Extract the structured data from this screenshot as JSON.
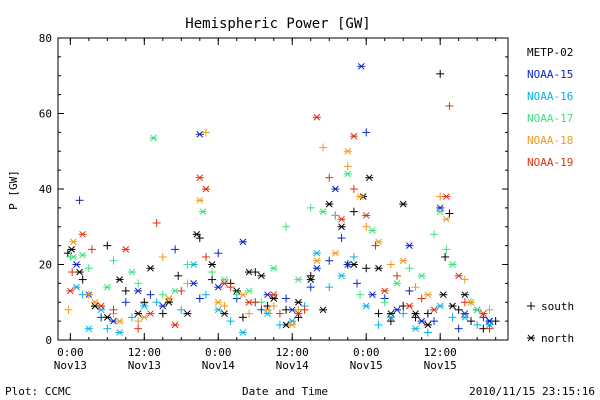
{
  "chart_data": {
    "type": "scatter",
    "title": "Hemispheric Power [GW]",
    "xlabel": "Date and Time",
    "ylabel": "P [GW]",
    "ylim": [
      0,
      80
    ],
    "xlim_hours": [
      -2,
      71
    ],
    "x_ticks": [
      {
        "hour": 0,
        "time": "0:00",
        "date": "Nov13"
      },
      {
        "hour": 12,
        "time": "12:00",
        "date": "Nov13"
      },
      {
        "hour": 24,
        "time": "0:00",
        "date": "Nov14"
      },
      {
        "hour": 36,
        "time": "12:00",
        "date": "Nov14"
      },
      {
        "hour": 48,
        "time": "0:00",
        "date": "Nov15"
      },
      {
        "hour": 60,
        "time": "12:00",
        "date": "Nov15"
      }
    ],
    "y_ticks": [
      0,
      20,
      40,
      60,
      80
    ],
    "footer_left": "Plot: CCMC",
    "footer_right": "2010/11/15 23:15:16",
    "marker_legend": [
      {
        "glyph": "+",
        "label": "south"
      },
      {
        "glyph": "*",
        "label": "north"
      }
    ],
    "series": [
      {
        "name": "METP-02",
        "color": "#000000",
        "south": [
          [
            -0.4,
            23
          ],
          [
            2,
            16
          ],
          [
            6,
            25
          ],
          [
            9,
            13
          ],
          [
            12,
            10
          ],
          [
            15,
            7
          ],
          [
            17.5,
            17
          ],
          [
            21,
            27
          ],
          [
            23,
            16
          ],
          [
            26,
            15
          ],
          [
            28,
            6
          ],
          [
            30,
            18
          ],
          [
            32,
            9
          ],
          [
            35,
            8
          ],
          [
            37,
            6
          ],
          [
            39,
            17
          ],
          [
            43,
            33
          ],
          [
            45,
            20
          ],
          [
            46,
            34
          ],
          [
            48,
            19
          ],
          [
            50,
            7
          ],
          [
            52,
            5
          ],
          [
            54,
            9
          ],
          [
            56,
            6
          ],
          [
            58,
            7
          ],
          [
            60,
            70.5
          ],
          [
            60.8,
            22
          ],
          [
            61.5,
            33.5
          ],
          [
            63,
            8
          ],
          [
            65,
            5
          ],
          [
            67,
            3
          ],
          [
            69,
            5
          ]
        ],
        "north": [
          [
            0.2,
            24
          ],
          [
            1.5,
            18
          ],
          [
            4,
            9
          ],
          [
            6,
            6
          ],
          [
            8,
            16
          ],
          [
            11,
            7
          ],
          [
            13,
            19
          ],
          [
            16,
            10
          ],
          [
            19,
            7
          ],
          [
            20.5,
            28
          ],
          [
            23,
            20
          ],
          [
            25,
            7
          ],
          [
            27,
            13
          ],
          [
            29,
            18
          ],
          [
            31,
            17
          ],
          [
            33,
            11
          ],
          [
            35,
            4
          ],
          [
            37,
            10
          ],
          [
            39,
            16
          ],
          [
            41,
            8
          ],
          [
            42,
            36
          ],
          [
            44,
            30
          ],
          [
            46,
            20
          ],
          [
            47.5,
            38
          ],
          [
            48.5,
            43
          ],
          [
            50,
            19
          ],
          [
            52,
            7
          ],
          [
            54,
            36
          ],
          [
            56,
            7
          ],
          [
            58,
            4
          ],
          [
            60.5,
            12
          ],
          [
            62,
            9
          ],
          [
            64,
            12
          ],
          [
            66,
            8
          ],
          [
            68,
            5
          ]
        ]
      },
      {
        "name": "NOAA-15",
        "color": "#0a26c8",
        "south": [
          [
            1.5,
            37
          ],
          [
            5,
            6
          ],
          [
            9,
            10
          ],
          [
            13,
            12
          ],
          [
            17,
            24
          ],
          [
            21,
            11
          ],
          [
            24,
            23
          ],
          [
            27,
            11
          ],
          [
            31,
            8
          ],
          [
            35,
            11
          ],
          [
            39,
            14
          ],
          [
            42,
            21
          ],
          [
            44,
            27
          ],
          [
            46.5,
            15
          ],
          [
            48,
            55
          ],
          [
            51,
            11
          ],
          [
            55,
            13
          ],
          [
            59,
            5
          ],
          [
            63,
            3
          ],
          [
            67,
            6
          ]
        ],
        "north": [
          [
            1,
            20
          ],
          [
            3,
            12
          ],
          [
            7,
            5
          ],
          [
            11,
            13
          ],
          [
            15,
            9
          ],
          [
            20,
            15
          ],
          [
            21,
            54.5
          ],
          [
            24,
            14
          ],
          [
            28,
            26
          ],
          [
            32,
            12
          ],
          [
            36,
            8
          ],
          [
            40,
            19
          ],
          [
            43,
            40
          ],
          [
            45,
            20
          ],
          [
            47.2,
            72.5
          ],
          [
            49,
            12
          ],
          [
            53,
            8
          ],
          [
            55,
            25
          ],
          [
            57,
            5
          ],
          [
            60,
            35
          ],
          [
            64,
            7
          ],
          [
            68,
            5
          ]
        ]
      },
      {
        "name": "NOAA-16",
        "color": "#00b4e6",
        "south": [
          [
            2,
            12
          ],
          [
            6,
            3
          ],
          [
            10,
            6
          ],
          [
            14,
            10
          ],
          [
            18,
            8
          ],
          [
            22,
            12
          ],
          [
            26,
            5
          ],
          [
            30,
            10
          ],
          [
            34,
            4
          ],
          [
            38,
            9
          ],
          [
            42,
            14
          ],
          [
            46,
            22
          ],
          [
            50,
            4
          ],
          [
            54,
            7
          ],
          [
            58,
            2
          ],
          [
            62,
            6
          ],
          [
            66,
            4
          ]
        ],
        "north": [
          [
            1,
            14
          ],
          [
            3,
            3
          ],
          [
            5,
            8
          ],
          [
            8,
            2
          ],
          [
            12,
            9
          ],
          [
            16,
            11
          ],
          [
            20,
            20
          ],
          [
            24,
            8
          ],
          [
            28,
            2
          ],
          [
            32,
            7
          ],
          [
            36,
            5
          ],
          [
            40,
            23
          ],
          [
            44,
            17
          ],
          [
            48,
            9
          ],
          [
            52,
            6
          ],
          [
            56,
            3
          ],
          [
            60,
            9
          ],
          [
            64,
            6
          ],
          [
            68,
            4
          ]
        ]
      },
      {
        "name": "NOAA-17",
        "color": "#40e080",
        "south": [
          [
            0,
            22
          ],
          [
            3,
            19
          ],
          [
            7,
            21
          ],
          [
            11,
            15
          ],
          [
            15,
            12
          ],
          [
            19,
            20
          ],
          [
            23,
            18
          ],
          [
            27,
            12
          ],
          [
            31,
            10
          ],
          [
            35,
            30
          ],
          [
            39,
            35
          ],
          [
            43,
            33
          ],
          [
            47,
            12
          ],
          [
            51,
            10
          ],
          [
            55,
            19
          ],
          [
            59,
            28
          ],
          [
            61,
            24
          ],
          [
            65,
            10
          ]
        ],
        "north": [
          [
            0.5,
            22
          ],
          [
            2,
            22.5
          ],
          [
            6,
            14
          ],
          [
            10,
            18
          ],
          [
            13.5,
            53.5
          ],
          [
            17,
            13
          ],
          [
            21.5,
            34
          ],
          [
            25,
            16
          ],
          [
            29,
            13
          ],
          [
            33,
            19
          ],
          [
            37,
            16
          ],
          [
            41,
            34
          ],
          [
            45,
            44
          ],
          [
            49,
            29
          ],
          [
            53,
            15
          ],
          [
            57,
            17
          ],
          [
            60,
            34
          ],
          [
            62,
            20
          ],
          [
            66,
            8
          ]
        ]
      },
      {
        "name": "NOAA-18",
        "color": "#f09a1c",
        "south": [
          [
            -0.3,
            8
          ],
          [
            3,
            12
          ],
          [
            7,
            7
          ],
          [
            11,
            5
          ],
          [
            15,
            22
          ],
          [
            19,
            15
          ],
          [
            22,
            55
          ],
          [
            25,
            9
          ],
          [
            29,
            7
          ],
          [
            33,
            9
          ],
          [
            37,
            8
          ],
          [
            41,
            51
          ],
          [
            45,
            46
          ],
          [
            48,
            30
          ],
          [
            52,
            20
          ],
          [
            56,
            14
          ],
          [
            60,
            38
          ],
          [
            64,
            16
          ],
          [
            68,
            8
          ]
        ],
        "north": [
          [
            0.5,
            26
          ],
          [
            4,
            10
          ],
          [
            8,
            5
          ],
          [
            12,
            6
          ],
          [
            16,
            11
          ],
          [
            21,
            37
          ],
          [
            24,
            10
          ],
          [
            28,
            12
          ],
          [
            32,
            8
          ],
          [
            36,
            4
          ],
          [
            40,
            21
          ],
          [
            43,
            23
          ],
          [
            45,
            50
          ],
          [
            47,
            38
          ],
          [
            50,
            26
          ],
          [
            54,
            21
          ],
          [
            58,
            12
          ],
          [
            61,
            32
          ],
          [
            65,
            10
          ]
        ]
      },
      {
        "name": "NOAA-19",
        "color": "#e03010",
        "south": [
          [
            0.3,
            18
          ],
          [
            3.5,
            24
          ],
          [
            7,
            8
          ],
          [
            11,
            3
          ],
          [
            14,
            31
          ],
          [
            18,
            13
          ],
          [
            22,
            22
          ],
          [
            26,
            14
          ],
          [
            30,
            10
          ],
          [
            34,
            7
          ],
          [
            38,
            8
          ],
          [
            42,
            43
          ],
          [
            46,
            40
          ],
          [
            49.5,
            25
          ],
          [
            53,
            17
          ],
          [
            57,
            11
          ],
          [
            61.5,
            62
          ],
          [
            64,
            10
          ],
          [
            68,
            3
          ]
        ],
        "north": [
          [
            0,
            13
          ],
          [
            2,
            28
          ],
          [
            5,
            9
          ],
          [
            9,
            24
          ],
          [
            13,
            7
          ],
          [
            17,
            4
          ],
          [
            21,
            43
          ],
          [
            22,
            40
          ],
          [
            25,
            15
          ],
          [
            29,
            10
          ],
          [
            33,
            12
          ],
          [
            37,
            7
          ],
          [
            40,
            59
          ],
          [
            44,
            32
          ],
          [
            46,
            54
          ],
          [
            48,
            33
          ],
          [
            51,
            13
          ],
          [
            55,
            9
          ],
          [
            59,
            8
          ],
          [
            61,
            38
          ],
          [
            63,
            17
          ],
          [
            67,
            7
          ]
        ]
      }
    ]
  }
}
